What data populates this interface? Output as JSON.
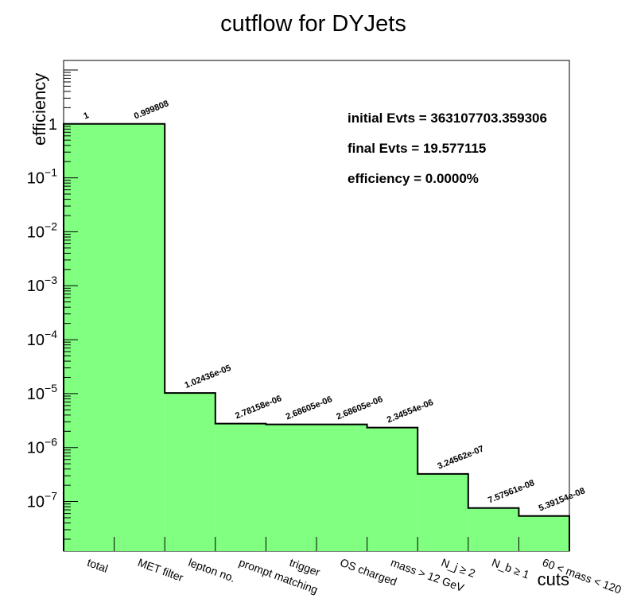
{
  "chart_data": {
    "type": "bar",
    "title": "cutflow for DYJets",
    "xlabel": "cuts",
    "ylabel": "efficiency",
    "yscale": "log",
    "ylim": [
      1.2e-08,
      15
    ],
    "categories": [
      "total",
      "MET filter",
      "lepton no.",
      "prompt matching",
      "trigger",
      "OS charged",
      "mass > 12 GeV",
      "N_j ≥ 2",
      "N_b ≥ 1",
      "60 < mass < 120"
    ],
    "values": [
      1,
      0.999808,
      1.02436e-05,
      2.78158e-06,
      2.68605e-06,
      2.68605e-06,
      2.34554e-06,
      3.24562e-07,
      7.57561e-08,
      5.39154e-08
    ],
    "value_labels": [
      "1",
      "0.999808",
      "1.02436e-05",
      "2.78158e-06",
      "2.68605e-06",
      "2.68605e-06",
      "2.34554e-06",
      "3.24562e-07",
      "7.57561e-08",
      "5.39154e-08"
    ],
    "yticks": [
      {
        "base": "",
        "exp": "",
        "text": "1",
        "value": 1
      },
      {
        "base": "10",
        "exp": "−1",
        "text": "",
        "value": 0.1
      },
      {
        "base": "10",
        "exp": "−2",
        "text": "",
        "value": 0.01
      },
      {
        "base": "10",
        "exp": "−3",
        "text": "",
        "value": 0.001
      },
      {
        "base": "10",
        "exp": "−4",
        "text": "",
        "value": 0.0001
      },
      {
        "base": "10",
        "exp": "−5",
        "text": "",
        "value": 1e-05
      },
      {
        "base": "10",
        "exp": "−6",
        "text": "",
        "value": 1e-06
      },
      {
        "base": "10",
        "exp": "−7",
        "text": "",
        "value": 1e-07
      }
    ],
    "annotations": [
      "initial Evts = 363107703.359306",
      "final Evts = 19.577115",
      "efficiency = 0.0000%"
    ],
    "fill_color": "#80ff80",
    "line_color": "#000000",
    "grid": false,
    "legend": "none"
  }
}
